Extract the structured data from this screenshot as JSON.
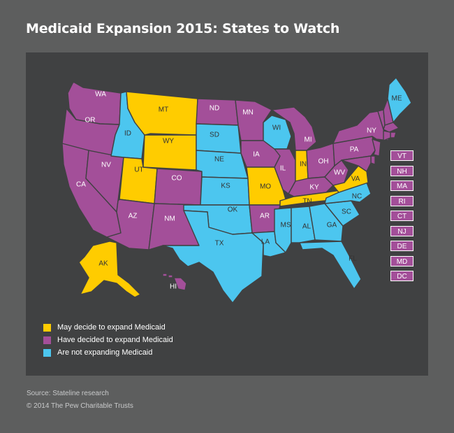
{
  "title": "Medicaid Expansion 2015: States to Watch",
  "source": "Source: Stateline research",
  "copyright": "© 2014 The Pew Charitable Trusts",
  "colors": {
    "may_decide": "#ffcc00",
    "have_decided": "#a34f99",
    "not_expanding": "#4cc6ef",
    "background": "#5d5e5e",
    "map_panel": "#404142"
  },
  "legend": [
    {
      "key": "may_decide",
      "label": "May decide to expand Medicaid"
    },
    {
      "key": "have_decided",
      "label": "Have decided to expand Medicaid"
    },
    {
      "key": "not_expanding",
      "label": "Are not expanding Medicaid"
    }
  ],
  "states": [
    {
      "code": "WA",
      "status": "have_decided"
    },
    {
      "code": "OR",
      "status": "have_decided"
    },
    {
      "code": "CA",
      "status": "have_decided"
    },
    {
      "code": "NV",
      "status": "have_decided"
    },
    {
      "code": "ID",
      "status": "not_expanding"
    },
    {
      "code": "MT",
      "status": "may_decide"
    },
    {
      "code": "WY",
      "status": "may_decide"
    },
    {
      "code": "UT",
      "status": "may_decide"
    },
    {
      "code": "AZ",
      "status": "have_decided"
    },
    {
      "code": "CO",
      "status": "have_decided"
    },
    {
      "code": "NM",
      "status": "have_decided"
    },
    {
      "code": "ND",
      "status": "have_decided"
    },
    {
      "code": "SD",
      "status": "not_expanding"
    },
    {
      "code": "NE",
      "status": "not_expanding"
    },
    {
      "code": "KS",
      "status": "not_expanding"
    },
    {
      "code": "OK",
      "status": "not_expanding"
    },
    {
      "code": "TX",
      "status": "not_expanding"
    },
    {
      "code": "MN",
      "status": "have_decided"
    },
    {
      "code": "IA",
      "status": "have_decided"
    },
    {
      "code": "MO",
      "status": "may_decide"
    },
    {
      "code": "AR",
      "status": "have_decided"
    },
    {
      "code": "LA",
      "status": "not_expanding"
    },
    {
      "code": "WI",
      "status": "not_expanding"
    },
    {
      "code": "IL",
      "status": "have_decided"
    },
    {
      "code": "MI",
      "status": "have_decided"
    },
    {
      "code": "IN",
      "status": "may_decide"
    },
    {
      "code": "OH",
      "status": "have_decided"
    },
    {
      "code": "KY",
      "status": "have_decided"
    },
    {
      "code": "TN",
      "status": "may_decide"
    },
    {
      "code": "MS",
      "status": "not_expanding"
    },
    {
      "code": "AL",
      "status": "not_expanding"
    },
    {
      "code": "GA",
      "status": "not_expanding"
    },
    {
      "code": "FL",
      "status": "not_expanding"
    },
    {
      "code": "SC",
      "status": "not_expanding"
    },
    {
      "code": "NC",
      "status": "not_expanding"
    },
    {
      "code": "VA",
      "status": "may_decide"
    },
    {
      "code": "WV",
      "status": "have_decided"
    },
    {
      "code": "PA",
      "status": "have_decided"
    },
    {
      "code": "NY",
      "status": "have_decided"
    },
    {
      "code": "ME",
      "status": "not_expanding"
    },
    {
      "code": "AK",
      "status": "may_decide"
    },
    {
      "code": "HI",
      "status": "have_decided"
    }
  ],
  "small_states": [
    {
      "code": "VT",
      "status": "have_decided"
    },
    {
      "code": "NH",
      "status": "have_decided"
    },
    {
      "code": "MA",
      "status": "have_decided"
    },
    {
      "code": "RI",
      "status": "have_decided"
    },
    {
      "code": "CT",
      "status": "have_decided"
    },
    {
      "code": "NJ",
      "status": "have_decided"
    },
    {
      "code": "DE",
      "status": "have_decided"
    },
    {
      "code": "MD",
      "status": "have_decided"
    },
    {
      "code": "DC",
      "status": "have_decided"
    }
  ]
}
